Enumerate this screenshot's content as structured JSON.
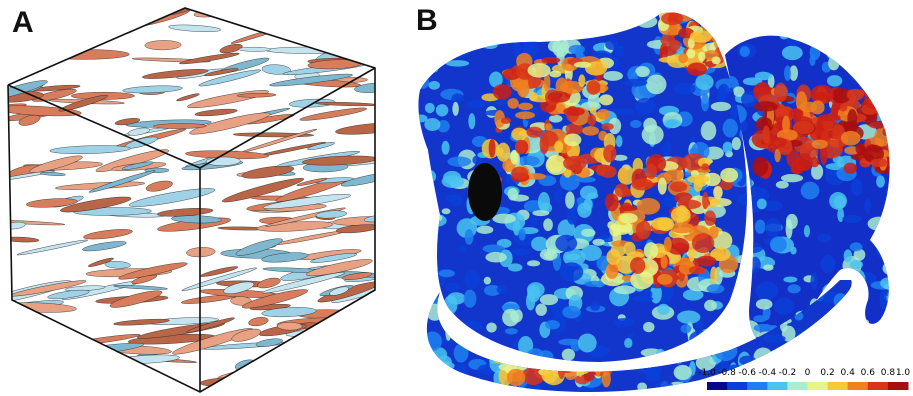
{
  "panels": {
    "a": {
      "label": "A"
    },
    "b": {
      "label": "B"
    }
  },
  "colorbar": {
    "ticks": [
      "-1.0",
      "-0.8",
      "-0.6",
      "-0.4",
      "-0.2",
      "0",
      "0.2",
      "0.4",
      "0.6",
      "0.8",
      "1.0"
    ],
    "colors": [
      "#08088a",
      "#0b3fd8",
      "#1f7ff0",
      "#49c3f0",
      "#a9ecd0",
      "#e6f58a",
      "#f7c83a",
      "#f08020",
      "#d8361a",
      "#a80e10"
    ]
  },
  "colors": {
    "iso_blue": "#9fd2e6",
    "iso_red": "#d77d5c",
    "heart_blue": "#1230c8",
    "heart_red": "#cc1f14"
  }
}
